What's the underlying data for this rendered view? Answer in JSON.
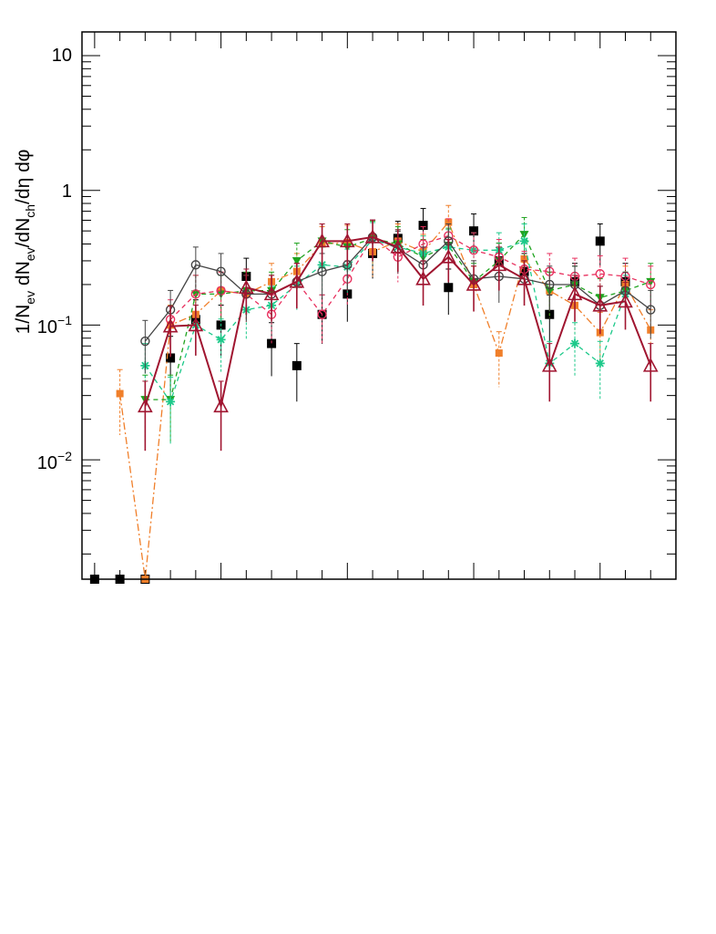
{
  "chart_data": {
    "type": "scatter",
    "title": "",
    "xlabel": "",
    "ylabel": "1/N_ev dN_ev/dN_ch/dη dφ",
    "ylabel_parts": {
      "p1": "1/N",
      "s1": "ev",
      "p2": " dN",
      "s2": "ev",
      "p3": "/dN",
      "s3": "ch",
      "p4": "/dη dφ"
    },
    "yscale": "log",
    "ylim": [
      0.0013,
      15
    ],
    "xlim": [
      -0.5,
      23
    ],
    "x": [
      0,
      1,
      2,
      3,
      4,
      5,
      6,
      7,
      8,
      9,
      10,
      11,
      12,
      13,
      14,
      15,
      16,
      17,
      18,
      19,
      20,
      21,
      22
    ],
    "ytick_labels": [
      {
        "value": 10,
        "label": "10",
        "exp": ""
      },
      {
        "value": 1,
        "label": "1",
        "exp": ""
      },
      {
        "value": 0.1,
        "label": "10",
        "exp": "−1"
      },
      {
        "value": 0.01,
        "label": "10",
        "exp": "−2"
      }
    ],
    "series": [
      {
        "name": "black-squares",
        "color": "#000000",
        "marker": "square-filled",
        "line": "none",
        "values": [
          0.0013,
          0.0013,
          0.0013,
          0.057,
          0.11,
          0.1,
          0.23,
          0.073,
          0.05,
          0.12,
          0.17,
          0.34,
          0.44,
          0.55,
          0.19,
          0.5,
          0.3,
          0.25,
          0.12,
          0.21,
          0.42,
          0.21,
          null
        ]
      },
      {
        "name": "orange-squares",
        "color": "#f07f2a",
        "marker": "square-filled",
        "line": "dashdot",
        "values": [
          null,
          0.031,
          0.0013,
          0.1,
          0.12,
          0.18,
          0.17,
          0.21,
          0.25,
          0.4,
          0.41,
          0.35,
          0.42,
          0.35,
          0.58,
          0.2,
          0.062,
          0.31,
          0.18,
          0.14,
          0.088,
          0.2,
          0.092
        ]
      },
      {
        "name": "green-triangles",
        "color": "#1fa31f",
        "marker": "triangle-down-filled",
        "line": "dashed",
        "values": [
          null,
          null,
          0.028,
          0.028,
          0.17,
          0.17,
          0.18,
          0.18,
          0.3,
          0.42,
          0.38,
          0.44,
          0.4,
          0.32,
          0.39,
          0.21,
          0.3,
          0.47,
          0.18,
          0.2,
          0.16,
          0.18,
          0.21
        ]
      },
      {
        "name": "teal-stars",
        "color": "#1dc98a",
        "marker": "star",
        "line": "dashed",
        "values": [
          null,
          null,
          0.05,
          0.027,
          0.1,
          0.078,
          0.13,
          0.14,
          0.2,
          0.28,
          0.27,
          0.43,
          0.38,
          0.34,
          0.38,
          0.36,
          0.36,
          0.42,
          0.052,
          0.073,
          0.052,
          0.17,
          null
        ]
      },
      {
        "name": "pink-circles",
        "color": "#e8315f",
        "marker": "circle-open",
        "line": "dashed",
        "values": [
          null,
          null,
          null,
          0.11,
          0.17,
          0.18,
          0.17,
          0.12,
          0.21,
          0.12,
          0.22,
          0.45,
          0.32,
          0.4,
          0.46,
          0.36,
          0.32,
          0.26,
          0.25,
          0.23,
          0.24,
          0.23,
          0.2
        ]
      },
      {
        "name": "gray-circles",
        "color": "#444444",
        "marker": "circle-open",
        "line": "solid",
        "values": [
          null,
          null,
          0.076,
          0.13,
          0.28,
          0.25,
          0.17,
          0.17,
          0.21,
          0.25,
          0.28,
          0.45,
          0.37,
          0.28,
          0.42,
          0.22,
          0.23,
          0.22,
          0.2,
          0.2,
          0.14,
          0.18,
          0.13
        ]
      },
      {
        "name": "darkred-triangles",
        "color": "#a01530",
        "marker": "triangle-open",
        "line": "solid",
        "values": [
          null,
          null,
          0.025,
          0.098,
          0.1,
          0.025,
          0.19,
          0.17,
          0.21,
          0.42,
          0.42,
          0.45,
          0.38,
          0.22,
          0.32,
          0.2,
          0.28,
          0.22,
          0.05,
          0.17,
          0.14,
          0.15,
          0.05
        ]
      }
    ]
  }
}
